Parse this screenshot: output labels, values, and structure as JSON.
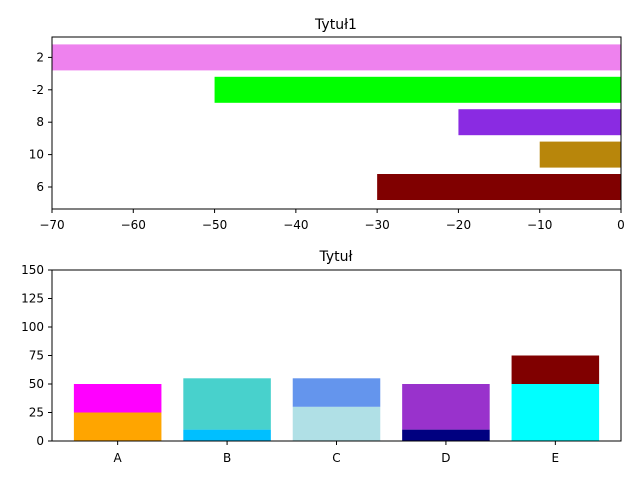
{
  "chart_data": [
    {
      "type": "bar",
      "orientation": "horizontal",
      "title": "Tytuł1",
      "xlabel": "",
      "ylabel": "",
      "categories": [
        "6",
        "10",
        "8",
        "-2",
        "2"
      ],
      "values": [
        -30,
        -10,
        -20,
        -50,
        -70
      ],
      "colors": [
        "#800000",
        "#b8860b",
        "#8a2be2",
        "#00ff00",
        "#ee82ee"
      ],
      "xlim": [
        -70,
        0
      ],
      "xticks": [
        -70,
        -60,
        -50,
        -40,
        -30,
        -20,
        -10,
        0
      ],
      "xtick_labels": [
        "−70",
        "−60",
        "−50",
        "−40",
        "−30",
        "−20",
        "−10",
        "0"
      ],
      "grid": false,
      "legend": "none"
    },
    {
      "type": "bar",
      "orientation": "vertical",
      "stacked": true,
      "title": "Tytuł",
      "xlabel": "",
      "ylabel": "",
      "categories": [
        "A",
        "B",
        "C",
        "D",
        "E"
      ],
      "series": [
        {
          "values": [
            25,
            10,
            30,
            10,
            50
          ],
          "colors": [
            "#ffa500",
            "#00bfff",
            "#b0e0e6",
            "#000080",
            "#00ffff"
          ]
        },
        {
          "values": [
            25,
            45,
            25,
            40,
            25
          ],
          "colors": [
            "#ff00ff",
            "#48d1cc",
            "#6495ed",
            "#9932cc",
            "#800000"
          ]
        }
      ],
      "ylim": [
        0,
        150
      ],
      "yticks": [
        0,
        25,
        50,
        75,
        100,
        125,
        150
      ],
      "ytick_labels": [
        "0",
        "25",
        "50",
        "75",
        "100",
        "125",
        "150"
      ],
      "grid": false,
      "legend": "none"
    }
  ]
}
